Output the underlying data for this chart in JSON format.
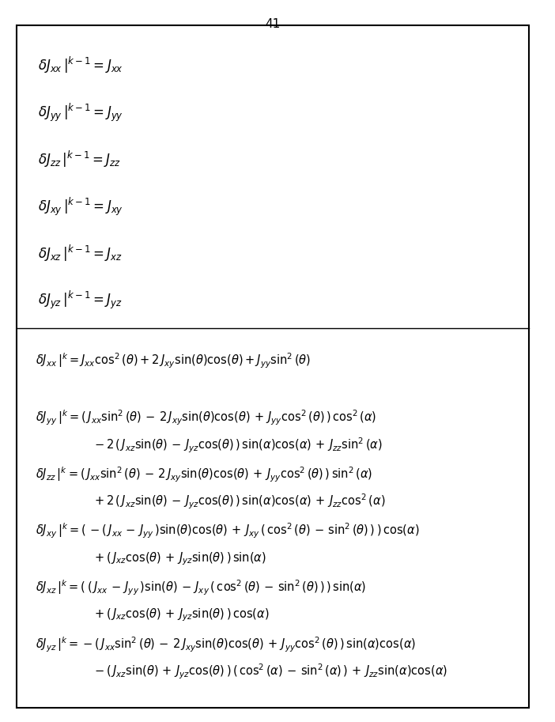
{
  "title": "41",
  "background_color": "#ffffff",
  "border_color": "#000000",
  "text_color": "#000000",
  "fig_width": 7.02,
  "fig_height": 9.13,
  "top_section_equations": [
    "$\\delta J_{xx}\\,|^{k-1} = J_{xx}$",
    "$\\delta J_{yy}\\,|^{k-1} = J_{yy}$",
    "$\\delta J_{zz}\\,|^{k-1} = J_{zz}$",
    "$\\delta J_{xy}\\,|^{k-1} = J_{xy}$",
    "$\\delta J_{xz}\\,|^{k-1} = J_{xz}$",
    "$\\delta J_{yz}\\,|^{k-1} = J_{yz}$"
  ],
  "bottom_section_equations": [
    [
      "$\\delta J_{xx}\\,|^{k} = J_{xx}\\cos^2(\\theta)  +  2\\,J_{xy}\\sin(\\theta)\\cos(\\theta)  +  J_{yy}\\sin^2(\\theta)$"
    ],
    [
      "$\\delta J_{yy}\\,|^{k} = (\\,J_{xx}\\sin^2(\\theta)\\,-\\,2\\,J_{xy}\\sin(\\theta)\\cos(\\theta)\\,+\\,J_{yy}\\cos^2(\\theta)\\,)\\,\\cos^2(\\alpha)$",
      "$\\quad\\quad\\quad\\quad\\quad - 2\\,(\\,J_{xz}\\sin(\\theta)\\,-\\,J_{yz}\\cos(\\theta)\\,)\\,\\sin(\\alpha)\\cos(\\alpha)\\,+\\,J_{zz}\\sin^2(\\alpha)$"
    ],
    [
      "$\\delta J_{zz}\\,|^{k} = (\\,J_{xx}\\sin^2(\\theta)\\,-\\,2\\,J_{xy}\\sin(\\theta)\\cos(\\theta)\\,+\\,J_{yy}\\cos^2(\\theta)\\,)\\,\\sin^2(\\alpha)$",
      "$\\quad\\quad\\quad\\quad\\quad + 2\\,(\\,J_{xz}\\sin(\\theta)\\,-\\,J_{yz}\\cos(\\theta)\\,)\\,\\sin(\\alpha)\\cos(\\alpha)\\,+\\,J_{zz}\\cos^2(\\alpha)$"
    ],
    [
      "$\\delta J_{xy}\\,|^{k} = (\\,-(\\,J_{xx}\\,-\\,J_{yy}\\,)\\sin(\\theta)\\cos(\\theta)\\,+\\,J_{xy}\\,(\\,\\cos^2(\\theta)\\,-\\,\\sin^2(\\theta)\\,)\\,)\\,\\cos(\\alpha)$",
      "$\\quad\\quad\\quad\\quad\\quad + (\\,J_{xz}\\cos(\\theta)\\,+\\,J_{yz}\\sin(\\theta)\\,)\\,\\sin(\\alpha)$"
    ],
    [
      "$\\delta J_{xz}\\,|^{k} = (\\,(\\,J_{xx}\\,-\\,J_{yy}\\,)\\sin(\\theta)\\,-\\,J_{xy}\\,(\\,\\cos^2(\\theta)\\,-\\,\\sin^2(\\theta)\\,)\\,)\\,\\sin(\\alpha)$",
      "$\\quad\\quad\\quad\\quad\\quad + (\\,J_{xz}\\cos(\\theta)\\,+\\,J_{yz}\\sin(\\theta)\\,)\\,\\cos(\\alpha)$"
    ],
    [
      "$\\delta J_{yz}\\,|^{k} = -(\\,J_{xx}\\sin^2(\\theta)\\,-\\,2\\,J_{xy}\\sin(\\theta)\\cos(\\theta)\\,+\\,J_{yy}\\cos^2(\\theta)\\,)\\,\\sin(\\alpha)\\cos(\\alpha)$",
      "$\\quad\\quad\\quad\\quad\\quad -(\\,J_{xz}\\sin(\\theta)\\,+\\,J_{yz}\\cos(\\theta)\\,)\\,(\\,\\cos^2(\\alpha)\\,-\\,\\sin^2(\\alpha)\\,)\\,+\\,J_{zz}\\sin(\\alpha)\\cos(\\alpha)$"
    ]
  ]
}
